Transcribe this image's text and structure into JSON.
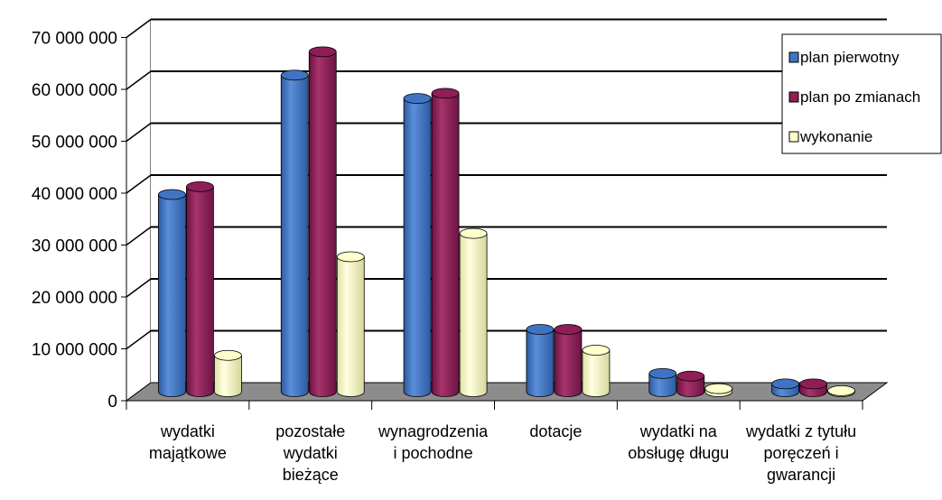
{
  "chart_data": {
    "type": "bar",
    "categories": [
      [
        "wydatki",
        "majątkowe"
      ],
      [
        "pozostałe",
        "wydatki",
        "bieżące"
      ],
      [
        "wynagrodzenia",
        "i pochodne"
      ],
      [
        "dotacje"
      ],
      [
        "wydatki na",
        "obsługę długu"
      ],
      [
        "wydatki z tytułu",
        "poręczeń i",
        "gwarancji"
      ]
    ],
    "series": [
      {
        "name": "plan pierwotny",
        "color": "#3F74C3",
        "values": [
          38000000,
          61000000,
          56500000,
          12000000,
          3500000,
          1500000
        ]
      },
      {
        "name": "plan po  zmianach",
        "color": "#8E1E55",
        "values": [
          39500000,
          65500000,
          57500000,
          12000000,
          3000000,
          1500000
        ]
      },
      {
        "name": "wykonanie",
        "color": "#FFFFCC",
        "values": [
          7000000,
          26000000,
          30500000,
          8000000,
          600000,
          200000
        ]
      }
    ],
    "y_tick_labels": [
      "0",
      "10 000 000",
      "20 000 000",
      "30 000 000",
      "40 000 000",
      "50 000 000",
      "60 000 000",
      "70 000 000"
    ],
    "ylim": [
      0,
      70000000
    ],
    "grid": true,
    "legend_position": "top-right"
  }
}
